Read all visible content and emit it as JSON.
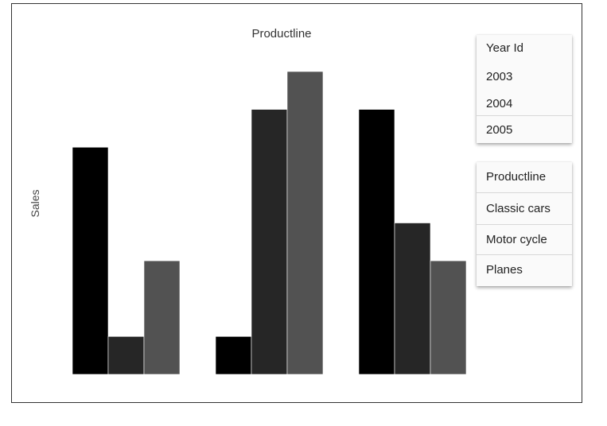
{
  "chart_data": {
    "type": "bar",
    "title": "Productline",
    "ylabel": "Sales",
    "xlabel": "",
    "categories": [
      "",
      "",
      ""
    ],
    "series": [
      {
        "color": "#000000",
        "values": [
          6,
          1,
          7
        ]
      },
      {
        "color": "#262626",
        "values": [
          1,
          7,
          4
        ]
      },
      {
        "color": "#525252",
        "values": [
          3,
          8,
          3
        ]
      }
    ],
    "ylim": [
      0,
      8
    ],
    "grid": false
  },
  "year_filter": {
    "header": "Year Id",
    "items": [
      "2003",
      "2004",
      "2005"
    ]
  },
  "product_filter": {
    "header": "Productline",
    "items": [
      "Classic cars",
      "Motor cycle",
      "Planes"
    ]
  }
}
